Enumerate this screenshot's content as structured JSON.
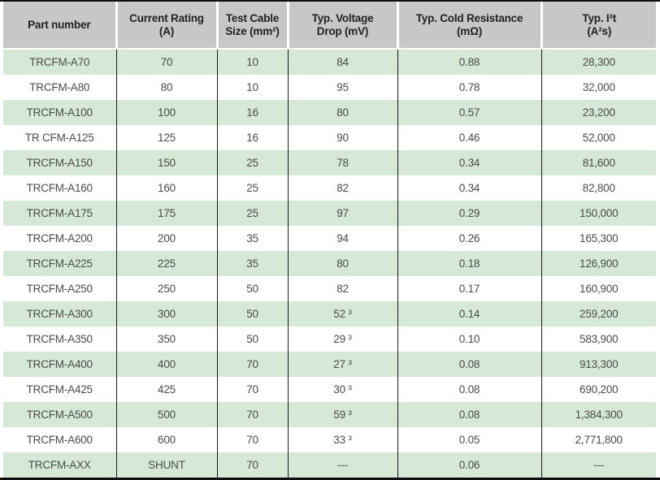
{
  "header": {
    "columns": [
      {
        "line1": "Part number",
        "line2": ""
      },
      {
        "line1": "Current Rating",
        "line2": "(A)"
      },
      {
        "line1": "Test Cable",
        "line2": "Size (mm²)"
      },
      {
        "line1": "Typ. Voltage",
        "line2": "Drop (mV)"
      },
      {
        "line1": "Typ. Cold Resistance",
        "line2": "(mΩ)"
      },
      {
        "line1": "Typ. I²t",
        "line2": "(A²s)"
      }
    ]
  },
  "column_keys": [
    "part_number",
    "current_rating_a",
    "test_cable_size_mm2",
    "typ_voltage_drop_mv",
    "typ_cold_resistance_mohm",
    "typ_i2t_a2s"
  ],
  "rows": [
    {
      "part_number": "TRCFM-A70",
      "current_rating_a": "70",
      "test_cable_size_mm2": "10",
      "typ_voltage_drop_mv": "84",
      "typ_cold_resistance_mohm": "0.88",
      "typ_i2t_a2s": "28,300"
    },
    {
      "part_number": "TRCFM-A80",
      "current_rating_a": "80",
      "test_cable_size_mm2": "10",
      "typ_voltage_drop_mv": "95",
      "typ_cold_resistance_mohm": "0.78",
      "typ_i2t_a2s": "32,000"
    },
    {
      "part_number": "TRCFM-A100",
      "current_rating_a": "100",
      "test_cable_size_mm2": "16",
      "typ_voltage_drop_mv": "80",
      "typ_cold_resistance_mohm": "0.57",
      "typ_i2t_a2s": "23,200"
    },
    {
      "part_number": "TR CFM-A125",
      "current_rating_a": "125",
      "test_cable_size_mm2": "16",
      "typ_voltage_drop_mv": "90",
      "typ_cold_resistance_mohm": "0.46",
      "typ_i2t_a2s": "52,000"
    },
    {
      "part_number": "TRCFM-A150",
      "current_rating_a": "150",
      "test_cable_size_mm2": "25",
      "typ_voltage_drop_mv": "78",
      "typ_cold_resistance_mohm": "0.34",
      "typ_i2t_a2s": "81,600"
    },
    {
      "part_number": "TRCFM-A160",
      "current_rating_a": "160",
      "test_cable_size_mm2": "25",
      "typ_voltage_drop_mv": "82",
      "typ_cold_resistance_mohm": "0.34",
      "typ_i2t_a2s": "82,800"
    },
    {
      "part_number": "TRCFM-A175",
      "current_rating_a": "175",
      "test_cable_size_mm2": "25",
      "typ_voltage_drop_mv": "97",
      "typ_cold_resistance_mohm": "0.29",
      "typ_i2t_a2s": "150,000"
    },
    {
      "part_number": "TRCFM-A200",
      "current_rating_a": "200",
      "test_cable_size_mm2": "35",
      "typ_voltage_drop_mv": "94",
      "typ_cold_resistance_mohm": "0.26",
      "typ_i2t_a2s": "165,300"
    },
    {
      "part_number": "TRCFM-A225",
      "current_rating_a": "225",
      "test_cable_size_mm2": "35",
      "typ_voltage_drop_mv": "80",
      "typ_cold_resistance_mohm": "0.18",
      "typ_i2t_a2s": "126,900"
    },
    {
      "part_number": "TRCFM-A250",
      "current_rating_a": "250",
      "test_cable_size_mm2": "50",
      "typ_voltage_drop_mv": "82",
      "typ_cold_resistance_mohm": "0.17",
      "typ_i2t_a2s": "160,900"
    },
    {
      "part_number": "TRCFM-A300",
      "current_rating_a": "300",
      "test_cable_size_mm2": "50",
      "typ_voltage_drop_mv": "52 ³",
      "typ_cold_resistance_mohm": "0.14",
      "typ_i2t_a2s": "259,200"
    },
    {
      "part_number": "TRCFM-A350",
      "current_rating_a": "350",
      "test_cable_size_mm2": "50",
      "typ_voltage_drop_mv": "29 ³",
      "typ_cold_resistance_mohm": "0.10",
      "typ_i2t_a2s": "583,900"
    },
    {
      "part_number": "TRCFM-A400",
      "current_rating_a": "400",
      "test_cable_size_mm2": "70",
      "typ_voltage_drop_mv": "27 ³",
      "typ_cold_resistance_mohm": "0.08",
      "typ_i2t_a2s": "913,300"
    },
    {
      "part_number": "TRCFM-A425",
      "current_rating_a": "425",
      "test_cable_size_mm2": "70",
      "typ_voltage_drop_mv": "30 ³",
      "typ_cold_resistance_mohm": "0.08",
      "typ_i2t_a2s": "690,200"
    },
    {
      "part_number": "TRCFM-A500",
      "current_rating_a": "500",
      "test_cable_size_mm2": "70",
      "typ_voltage_drop_mv": "59 ³",
      "typ_cold_resistance_mohm": "0.08",
      "typ_i2t_a2s": "1,384,300"
    },
    {
      "part_number": "TRCFM-A600",
      "current_rating_a": "600",
      "test_cable_size_mm2": "70",
      "typ_voltage_drop_mv": "33 ³",
      "typ_cold_resistance_mohm": "0.05",
      "typ_i2t_a2s": "2,771,800"
    },
    {
      "part_number": "TRCFM-AXX",
      "current_rating_a": "SHUNT",
      "test_cable_size_mm2": "70",
      "typ_voltage_drop_mv": "---",
      "typ_cold_resistance_mohm": "0.06",
      "typ_i2t_a2s": "---"
    }
  ],
  "colors": {
    "row_stripe_green": "#d6e8d6",
    "header_gray": "#c7c7c7",
    "rule_black": "#0e0e0e",
    "divider_black": "#1a1a1a",
    "cell_text": "#4b4b4b",
    "header_text": "#222222"
  }
}
